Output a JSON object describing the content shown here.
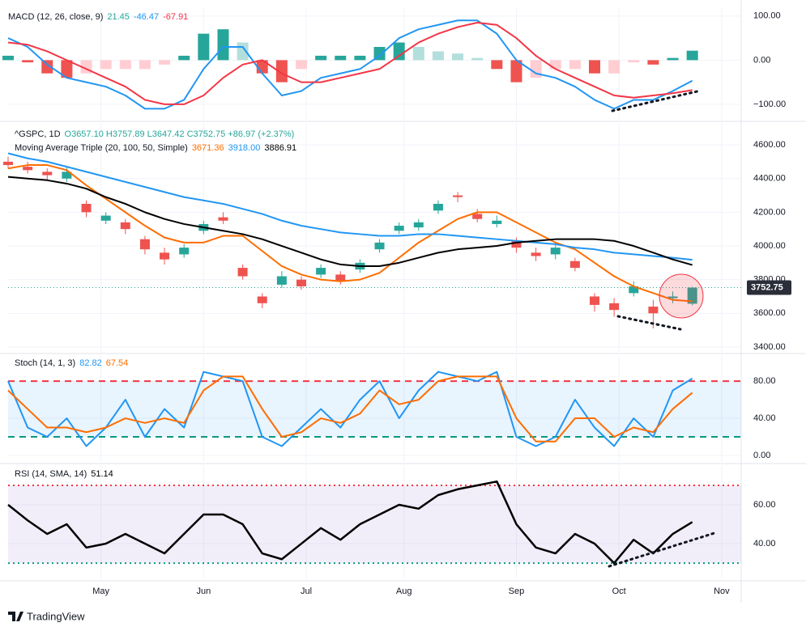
{
  "chart_data": [
    {
      "type": "combo",
      "title": "MACD (12, 26, close, 9)",
      "x": [
        0,
        4,
        8,
        12,
        16,
        20,
        24,
        28,
        32,
        36,
        40,
        44,
        48,
        52,
        56,
        60,
        64,
        68,
        72,
        76,
        80,
        84,
        88,
        92,
        96,
        100,
        104,
        108,
        112,
        116,
        120,
        124,
        128,
        132,
        136,
        140
      ],
      "xlim": [
        0,
        150
      ],
      "ylim": [
        -135,
        118
      ],
      "yticks": [
        {
          "value": 100,
          "label": "100.00"
        },
        {
          "value": 0,
          "label": "0.00"
        },
        {
          "value": -100,
          "label": "−100.00"
        }
      ],
      "series": [
        {
          "type": "bar",
          "colors": [
            "#26a69a",
            "#b2dfdb",
            "#ffcdd2",
            "#ef5350"
          ],
          "values": [
            10,
            -5,
            -30,
            -40,
            -30,
            -20,
            -20,
            -20,
            -10,
            10,
            60,
            70,
            40,
            -30,
            -50,
            -20,
            10,
            10,
            10,
            30,
            40,
            30,
            20,
            15,
            5,
            -20,
            -50,
            -40,
            -20,
            -20,
            -30,
            -30,
            -5,
            -10,
            5,
            21.45
          ]
        },
        {
          "type": "line",
          "color": "#2196f3",
          "values": [
            50,
            30,
            -10,
            -40,
            -50,
            -60,
            -80,
            -110,
            -110,
            -90,
            -20,
            30,
            30,
            -30,
            -80,
            -70,
            -40,
            -30,
            -20,
            10,
            50,
            70,
            80,
            90,
            90,
            60,
            0,
            -30,
            -40,
            -60,
            -90,
            -110,
            -90,
            -90,
            -70,
            -46.47
          ]
        },
        {
          "type": "line",
          "color": "#f23645",
          "values": [
            40,
            35,
            20,
            0,
            -20,
            -40,
            -60,
            -90,
            -100,
            -100,
            -80,
            -40,
            -10,
            0,
            -30,
            -50,
            -50,
            -40,
            -30,
            -20,
            10,
            40,
            60,
            75,
            85,
            80,
            50,
            10,
            -20,
            -40,
            -60,
            -80,
            -85,
            -80,
            -75,
            -67.91
          ]
        }
      ]
    },
    {
      "type": "candlestick",
      "title": "^GSPC, 1D",
      "ohlc_label": "O3657.10 H3757.89 L3647.42 C3752.75 +86.97 (+2.37%)",
      "ma_title": "Moving Average Triple (20, 100, 50, Simple)",
      "x": [
        0,
        4,
        8,
        12,
        16,
        20,
        24,
        28,
        32,
        36,
        40,
        44,
        48,
        52,
        56,
        60,
        64,
        68,
        72,
        76,
        80,
        84,
        88,
        92,
        96,
        100,
        104,
        108,
        112,
        116,
        120,
        124,
        128,
        132,
        136,
        140
      ],
      "xlim": [
        0,
        150
      ],
      "ylim": [
        3371,
        4730
      ],
      "yticks": [
        {
          "value": 3400,
          "label": "3400.00"
        },
        {
          "value": 3600,
          "label": "3600.00"
        },
        {
          "value": 3800,
          "label": "3800.00"
        },
        {
          "value": 4000,
          "label": "4000.00"
        },
        {
          "value": 4200,
          "label": "4200.00"
        },
        {
          "value": 4400,
          "label": "4400.00"
        },
        {
          "value": 4600,
          "label": "4600.00"
        }
      ],
      "up_color": "#26a69a",
      "down_color": "#ef5350",
      "last_color": "#26a69a",
      "open": [
        4500,
        4470,
        4440,
        4400,
        4250,
        4150,
        4140,
        4040,
        3960,
        3950,
        4090,
        4170,
        3870,
        3700,
        3770,
        3800,
        3830,
        3830,
        3860,
        3980,
        4090,
        4110,
        4210,
        4300,
        4190,
        4130,
        4030,
        3960,
        3950,
        3910,
        3700,
        3660,
        3720,
        3640,
        3690,
        3657.1
      ],
      "high": [
        4530,
        4500,
        4460,
        4470,
        4270,
        4200,
        4160,
        4060,
        3990,
        4010,
        4150,
        4200,
        3890,
        3720,
        3850,
        3820,
        3890,
        3850,
        3920,
        4040,
        4140,
        4160,
        4270,
        4320,
        4220,
        4180,
        4050,
        3990,
        4020,
        3930,
        3720,
        3690,
        3790,
        3680,
        3730,
        3757.89
      ],
      "low": [
        4460,
        4430,
        4390,
        4380,
        4170,
        4130,
        4070,
        3950,
        3890,
        3930,
        4070,
        4130,
        3800,
        3630,
        3750,
        3740,
        3810,
        3770,
        3840,
        3960,
        4070,
        4090,
        4190,
        4260,
        4140,
        4110,
        3960,
        3910,
        3920,
        3850,
        3610,
        3580,
        3700,
        3510,
        3660,
        3647.42
      ],
      "close": [
        4480,
        4450,
        4420,
        4440,
        4200,
        4180,
        4100,
        3980,
        3920,
        3990,
        4130,
        4150,
        3820,
        3660,
        3820,
        3760,
        3870,
        3790,
        3900,
        4020,
        4120,
        4140,
        4250,
        4290,
        4160,
        4150,
        3990,
        3940,
        3990,
        3870,
        3650,
        3620,
        3760,
        3600,
        3700,
        3752.75
      ],
      "series": [
        {
          "type": "line",
          "color": "#ff6d00",
          "legend_value": "3671.36",
          "values": [
            4460,
            4480,
            4480,
            4450,
            4360,
            4280,
            4200,
            4120,
            4050,
            4020,
            4020,
            4060,
            4060,
            3970,
            3880,
            3830,
            3800,
            3790,
            3800,
            3840,
            3930,
            4020,
            4090,
            4160,
            4200,
            4200,
            4140,
            4080,
            4020,
            3980,
            3900,
            3820,
            3760,
            3720,
            3680,
            3671.36
          ]
        },
        {
          "type": "line",
          "color": "#2196f3",
          "legend_value": "3918.00",
          "values": [
            4550,
            4520,
            4500,
            4470,
            4440,
            4410,
            4380,
            4350,
            4320,
            4290,
            4270,
            4250,
            4220,
            4190,
            4150,
            4120,
            4100,
            4080,
            4070,
            4060,
            4060,
            4070,
            4070,
            4060,
            4050,
            4040,
            4030,
            4020,
            4010,
            3990,
            3980,
            3960,
            3950,
            3940,
            3930,
            3918
          ]
        },
        {
          "type": "line",
          "color": "#000000",
          "legend_value": "3886.91",
          "values": [
            4410,
            4400,
            4390,
            4370,
            4340,
            4290,
            4250,
            4200,
            4160,
            4130,
            4110,
            4090,
            4070,
            4040,
            4000,
            3960,
            3920,
            3890,
            3880,
            3880,
            3900,
            3930,
            3960,
            3980,
            3990,
            4000,
            4020,
            4030,
            4040,
            4040,
            4040,
            4030,
            4000,
            3960,
            3920,
            3886.91
          ]
        }
      ]
    },
    {
      "type": "line",
      "title": "Stoch (14, 1, 3)",
      "x": [
        0,
        4,
        8,
        12,
        16,
        20,
        24,
        28,
        32,
        36,
        40,
        44,
        48,
        52,
        56,
        60,
        64,
        68,
        72,
        76,
        80,
        84,
        88,
        92,
        96,
        100,
        104,
        108,
        112,
        116,
        120,
        124,
        128,
        132,
        136,
        140
      ],
      "xlim": [
        0,
        150
      ],
      "ylim": [
        -7,
        108
      ],
      "yticks": [
        {
          "value": 0,
          "label": "0.00"
        },
        {
          "value": 40,
          "label": "40.00"
        },
        {
          "value": 80,
          "label": "80.00"
        }
      ],
      "band_color": "rgba(33,150,243,0.1)",
      "levels": [
        {
          "value": 80,
          "color": "#f23645"
        },
        {
          "value": 20,
          "color": "#089981"
        }
      ],
      "level_dash": "8 6",
      "series": [
        {
          "type": "line",
          "color": "#2196f3",
          "values": [
            80,
            30,
            20,
            40,
            10,
            30,
            60,
            20,
            50,
            30,
            90,
            85,
            80,
            20,
            10,
            30,
            50,
            30,
            60,
            80,
            40,
            70,
            90,
            85,
            80,
            90,
            20,
            10,
            20,
            60,
            30,
            10,
            40,
            20,
            70,
            82.82
          ]
        },
        {
          "type": "line",
          "color": "#ff6d00",
          "values": [
            70,
            50,
            30,
            30,
            25,
            30,
            40,
            35,
            40,
            35,
            70,
            85,
            85,
            50,
            20,
            25,
            40,
            35,
            45,
            70,
            55,
            60,
            80,
            85,
            85,
            85,
            40,
            15,
            15,
            40,
            40,
            20,
            30,
            25,
            50,
            67.54
          ]
        }
      ]
    },
    {
      "type": "line",
      "title": "RSI (14, SMA, 14)",
      "x": [
        0,
        4,
        8,
        12,
        16,
        20,
        24,
        28,
        32,
        36,
        40,
        44,
        48,
        52,
        56,
        60,
        64,
        68,
        72,
        76,
        80,
        84,
        88,
        92,
        96,
        100,
        104,
        108,
        112,
        116,
        120,
        124,
        128,
        132,
        136,
        140
      ],
      "xlim": [
        0,
        150
      ],
      "ylim": [
        21.7,
        80.4
      ],
      "yticks": [
        {
          "value": 40,
          "label": "40.00"
        },
        {
          "value": 60,
          "label": "60.00"
        }
      ],
      "xticks": [
        {
          "value": 19,
          "label": "May"
        },
        {
          "value": 40,
          "label": "Jun"
        },
        {
          "value": 61,
          "label": "Jul"
        },
        {
          "value": 81,
          "label": "Aug"
        },
        {
          "value": 104,
          "label": "Sep"
        },
        {
          "value": 125,
          "label": "Oct"
        },
        {
          "value": 146,
          "label": "Nov"
        }
      ],
      "band_color": "rgba(126,87,194,0.1)",
      "levels": [
        {
          "value": 70,
          "color": "#f23645"
        },
        {
          "value": 30,
          "color": "#089981"
        }
      ],
      "level_dash": "2 4",
      "series": [
        {
          "type": "line",
          "color": "#000000",
          "width": 2.5,
          "values": [
            60,
            52,
            45,
            50,
            38,
            40,
            45,
            40,
            35,
            45,
            55,
            55,
            50,
            35,
            32,
            40,
            48,
            42,
            50,
            55,
            60,
            58,
            65,
            68,
            70,
            72,
            50,
            38,
            35,
            45,
            40,
            30,
            42,
            35,
            45,
            51.14
          ]
        }
      ]
    }
  ],
  "footer": "TradingView"
}
